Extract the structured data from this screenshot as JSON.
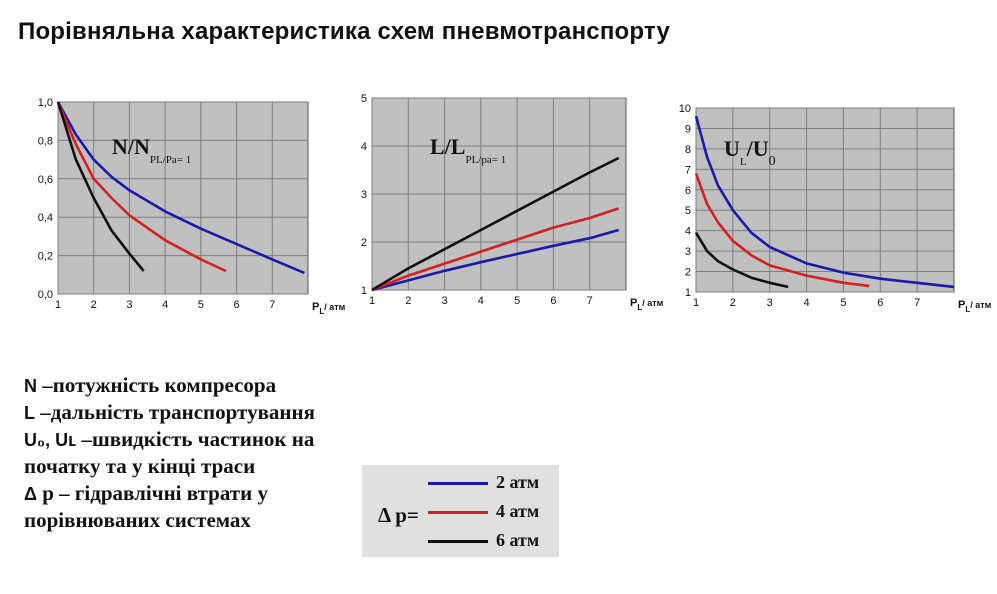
{
  "page": {
    "title": "Порівняльна характеристика схем пневмотранспорту"
  },
  "chart_data": [
    {
      "type": "line",
      "title": "N/N",
      "title_sub": "PL/Pa= 1",
      "xlabel": "P",
      "xlabel_sub": "L",
      "xlabel_unit": "атм",
      "xlim": [
        1,
        8
      ],
      "ylim": [
        0,
        1.0
      ],
      "x_ticks": [
        "1",
        "2",
        "3",
        "4",
        "5",
        "6",
        "7"
      ],
      "y_ticks": [
        "0,0",
        "0,2",
        "0,4",
        "0,6",
        "0,8",
        "1,0"
      ],
      "grid": true,
      "series": [
        {
          "color": "#1a1aa8",
          "points": [
            [
              1,
              1.0
            ],
            [
              1.5,
              0.83
            ],
            [
              2,
              0.7
            ],
            [
              2.5,
              0.61
            ],
            [
              3,
              0.54
            ],
            [
              4,
              0.43
            ],
            [
              5,
              0.34
            ],
            [
              6,
              0.26
            ],
            [
              7,
              0.18
            ],
            [
              7.9,
              0.11
            ]
          ]
        },
        {
          "color": "#d42020",
          "points": [
            [
              1,
              1.0
            ],
            [
              1.5,
              0.78
            ],
            [
              2,
              0.6
            ],
            [
              2.5,
              0.5
            ],
            [
              3,
              0.41
            ],
            [
              4,
              0.28
            ],
            [
              5,
              0.18
            ],
            [
              5.7,
              0.12
            ]
          ]
        },
        {
          "color": "#111111",
          "points": [
            [
              1,
              1.0
            ],
            [
              1.5,
              0.7
            ],
            [
              2,
              0.5
            ],
            [
              2.5,
              0.33
            ],
            [
              3,
              0.21
            ],
            [
              3.4,
              0.12
            ]
          ]
        }
      ]
    },
    {
      "type": "line",
      "title": "L/L",
      "title_sub": "PL/pa= 1",
      "xlabel": "P",
      "xlabel_sub": "L",
      "xlabel_unit": "атм",
      "xlim": [
        1,
        8
      ],
      "ylim": [
        1,
        5
      ],
      "x_ticks": [
        "1",
        "2",
        "3",
        "4",
        "5",
        "6",
        "7"
      ],
      "y_ticks": [
        "1",
        "2",
        "3",
        "4",
        "5"
      ],
      "grid": true,
      "series": [
        {
          "color": "#1a1aa8",
          "points": [
            [
              1,
              1.0
            ],
            [
              2,
              1.2
            ],
            [
              3,
              1.4
            ],
            [
              4,
              1.58
            ],
            [
              5,
              1.75
            ],
            [
              6,
              1.92
            ],
            [
              7,
              2.08
            ],
            [
              7.8,
              2.25
            ]
          ]
        },
        {
          "color": "#d42020",
          "points": [
            [
              1,
              1.0
            ],
            [
              2,
              1.3
            ],
            [
              3,
              1.55
            ],
            [
              4,
              1.8
            ],
            [
              5,
              2.05
            ],
            [
              6,
              2.3
            ],
            [
              7,
              2.5
            ],
            [
              7.8,
              2.7
            ]
          ]
        },
        {
          "color": "#111111",
          "points": [
            [
              1,
              1.0
            ],
            [
              2,
              1.45
            ],
            [
              3,
              1.85
            ],
            [
              4,
              2.25
            ],
            [
              5,
              2.65
            ],
            [
              6,
              3.05
            ],
            [
              7,
              3.45
            ],
            [
              7.8,
              3.75
            ]
          ]
        }
      ]
    },
    {
      "type": "line",
      "title": "U",
      "title_sub": "L",
      "title2": "/U",
      "title2_sub": "0",
      "xlabel": "P",
      "xlabel_sub": "L",
      "xlabel_unit": "атм",
      "xlim": [
        1,
        8
      ],
      "ylim": [
        1,
        10
      ],
      "x_ticks": [
        "1",
        "2",
        "3",
        "4",
        "5",
        "6",
        "7"
      ],
      "y_ticks": [
        "1",
        "2",
        "3",
        "4",
        "5",
        "6",
        "7",
        "8",
        "9",
        "10"
      ],
      "grid": true,
      "series": [
        {
          "color": "#1a1aa8",
          "points": [
            [
              1,
              9.6
            ],
            [
              1.3,
              7.6
            ],
            [
              1.6,
              6.2
            ],
            [
              2,
              5.0
            ],
            [
              2.5,
              3.9
            ],
            [
              3,
              3.2
            ],
            [
              4,
              2.4
            ],
            [
              5,
              1.95
            ],
            [
              6,
              1.65
            ],
            [
              7,
              1.45
            ],
            [
              8,
              1.25
            ]
          ]
        },
        {
          "color": "#d42020",
          "points": [
            [
              1,
              6.8
            ],
            [
              1.3,
              5.3
            ],
            [
              1.6,
              4.4
            ],
            [
              2,
              3.5
            ],
            [
              2.5,
              2.8
            ],
            [
              3,
              2.3
            ],
            [
              4,
              1.8
            ],
            [
              5,
              1.45
            ],
            [
              5.7,
              1.3
            ]
          ]
        },
        {
          "color": "#111111",
          "points": [
            [
              1,
              3.9
            ],
            [
              1.3,
              3.0
            ],
            [
              1.6,
              2.5
            ],
            [
              2,
              2.1
            ],
            [
              2.5,
              1.7
            ],
            [
              3,
              1.45
            ],
            [
              3.5,
              1.25
            ]
          ]
        }
      ]
    }
  ],
  "legend_text": [
    {
      "sym": "N",
      "text": " –потужність компресора"
    },
    {
      "sym": "L",
      "text": " –дальність транспортування"
    },
    {
      "sym": "U₀, Uʟ",
      "text": " –швидкість частинок на"
    },
    {
      "sym": "",
      "text": " початку та у кінці траси"
    },
    {
      "sym": "Δ",
      "text": " p – гідравлічні втрати у"
    },
    {
      "sym": "",
      "text": "порівнюваних системах"
    }
  ],
  "series_legend": {
    "prefix": "Δ p=",
    "items": [
      {
        "label": "2 атм",
        "color": "#1a1aa8"
      },
      {
        "label": "4 атм",
        "color": "#d42020"
      },
      {
        "label": "6 атм",
        "color": "#111111"
      }
    ]
  }
}
